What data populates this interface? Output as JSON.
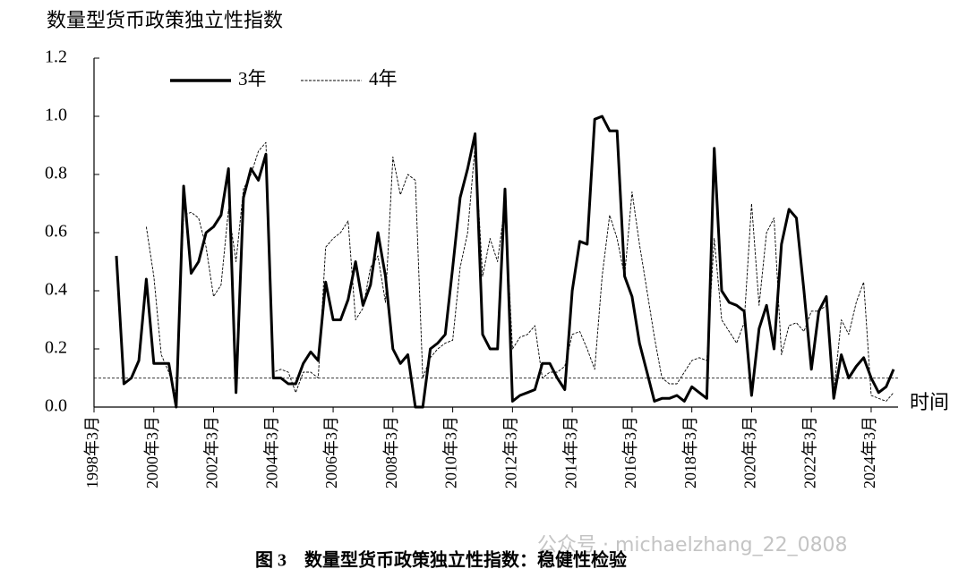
{
  "chart_data": {
    "type": "line",
    "title": "数量型货币政策独立性指数",
    "x_label": "时间",
    "caption": "图 3　数量型货币政策独立性指数：稳健性检验",
    "watermark": "公众号 · michaelzhang_22_0808",
    "categories": [
      "1998年3月",
      null,
      null,
      null,
      null,
      null,
      null,
      null,
      "2000年3月",
      null,
      null,
      null,
      null,
      null,
      null,
      null,
      "2002年3月",
      null,
      null,
      null,
      null,
      null,
      null,
      null,
      "2004年3月",
      null,
      null,
      null,
      null,
      null,
      null,
      null,
      "2006年3月",
      null,
      null,
      null,
      null,
      null,
      null,
      null,
      "2008年3月",
      null,
      null,
      null,
      null,
      null,
      null,
      null,
      "2010年3月",
      null,
      null,
      null,
      null,
      null,
      null,
      null,
      "2012年3月",
      null,
      null,
      null,
      null,
      null,
      null,
      null,
      "2014年3月",
      null,
      null,
      null,
      null,
      null,
      null,
      null,
      "2016年3月",
      null,
      null,
      null,
      null,
      null,
      null,
      null,
      "2018年3月",
      null,
      null,
      null,
      null,
      null,
      null,
      null,
      "2020年3月",
      null,
      null,
      null,
      null,
      null,
      null,
      null,
      "2022年3月",
      null,
      null,
      null,
      null,
      null,
      null,
      null,
      "2024年3月",
      null,
      null,
      null
    ],
    "series": [
      {
        "name": "3年",
        "color": "#000000",
        "style": "solid",
        "values": [
          null,
          null,
          null,
          0.52,
          0.08,
          0.1,
          0.16,
          0.44,
          0.15,
          0.15,
          0.15,
          0.0,
          0.76,
          0.46,
          0.5,
          0.6,
          0.62,
          0.66,
          0.82,
          0.05,
          0.72,
          0.82,
          0.78,
          0.87,
          0.1,
          0.1,
          0.08,
          0.08,
          0.15,
          0.19,
          0.16,
          0.43,
          0.3,
          0.3,
          0.37,
          0.5,
          0.35,
          0.42,
          0.6,
          0.45,
          0.2,
          0.15,
          0.18,
          0.0,
          0.0,
          0.2,
          0.22,
          0.25,
          0.48,
          0.72,
          0.82,
          0.94,
          0.25,
          0.2,
          0.2,
          0.75,
          0.02,
          0.04,
          0.05,
          0.06,
          0.15,
          0.15,
          0.1,
          0.06,
          0.4,
          0.57,
          0.56,
          0.99,
          1.0,
          0.95,
          0.95,
          0.45,
          0.38,
          0.22,
          0.12,
          0.02,
          0.03,
          0.03,
          0.04,
          0.02,
          0.07,
          0.05,
          0.03,
          0.89,
          0.4,
          0.36,
          0.35,
          0.33,
          0.04,
          0.27,
          0.35,
          0.2,
          0.56,
          0.68,
          0.65,
          0.4,
          0.13,
          0.33,
          0.38,
          0.03,
          0.18,
          0.1,
          0.14,
          0.17,
          0.1,
          0.05,
          0.07,
          0.13
        ]
      },
      {
        "name": "4年",
        "color": "#000000",
        "style": "dashed",
        "values": [
          null,
          null,
          null,
          null,
          null,
          null,
          null,
          0.62,
          0.45,
          0.18,
          0.12,
          0.04,
          0.66,
          0.67,
          0.65,
          0.55,
          0.38,
          0.42,
          0.68,
          0.5,
          0.75,
          0.8,
          0.88,
          0.91,
          0.12,
          0.13,
          0.12,
          0.05,
          0.12,
          0.12,
          0.1,
          0.55,
          0.58,
          0.6,
          0.64,
          0.3,
          0.34,
          0.48,
          0.52,
          0.36,
          0.86,
          0.73,
          0.8,
          0.78,
          0.1,
          0.17,
          0.2,
          0.22,
          0.23,
          0.48,
          0.6,
          0.9,
          0.45,
          0.58,
          0.5,
          0.7,
          0.2,
          0.24,
          0.25,
          0.28,
          0.1,
          0.12,
          0.12,
          0.14,
          0.25,
          0.26,
          0.2,
          0.13,
          0.45,
          0.66,
          0.58,
          0.45,
          0.74,
          0.56,
          0.4,
          0.24,
          0.1,
          0.08,
          0.08,
          0.12,
          0.16,
          0.17,
          0.16,
          0.58,
          0.3,
          0.26,
          0.22,
          0.29,
          0.7,
          0.35,
          0.6,
          0.65,
          0.18,
          0.28,
          0.29,
          0.26,
          0.33,
          0.33,
          0.35,
          0.05,
          0.3,
          0.25,
          0.36,
          0.43,
          0.04,
          0.03,
          0.02,
          0.05
        ]
      }
    ],
    "reference_line": 0.1,
    "ylim": [
      0,
      1.2
    ],
    "yticks": [
      {
        "value": 0,
        "label": "0.0"
      },
      {
        "value": 0.2,
        "label": "0.2"
      },
      {
        "value": 0.4,
        "label": "0.4"
      },
      {
        "value": 0.6,
        "label": "0.6"
      },
      {
        "value": 0.8,
        "label": "0.8"
      },
      {
        "value": 1.0,
        "label": "1.0"
      },
      {
        "value": 1.2,
        "label": "1.2"
      }
    ],
    "legend": "top-left"
  }
}
